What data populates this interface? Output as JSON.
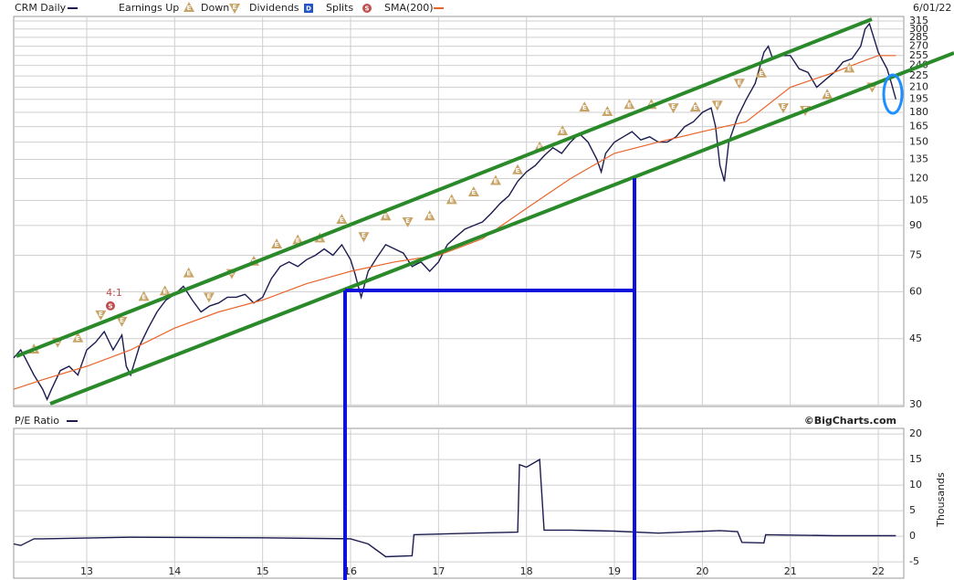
{
  "chart_data": [
    {
      "type": "line",
      "date": "6/01/22",
      "log_scale": true,
      "grid": true,
      "ylim": [
        29.7,
        324
      ],
      "xlim": [
        12.17,
        22.29
      ],
      "yticks": [
        30,
        45,
        60,
        75,
        90,
        105,
        120,
        135,
        150,
        165,
        180,
        195,
        210,
        225,
        240,
        255,
        270,
        285,
        300,
        315
      ],
      "xticks": [
        13,
        14,
        15,
        16,
        17,
        18,
        19,
        20,
        21,
        22
      ],
      "series": [
        {
          "name": "CRM Daily",
          "color": "#1c1c50",
          "x": [
            12.17,
            12.25,
            12.3,
            12.4,
            12.5,
            12.55,
            12.6,
            12.7,
            12.8,
            12.9,
            13.0,
            13.1,
            13.2,
            13.3,
            13.4,
            13.45,
            13.5,
            13.6,
            13.7,
            13.8,
            13.9,
            14.0,
            14.1,
            14.2,
            14.3,
            14.4,
            14.5,
            14.6,
            14.7,
            14.8,
            14.9,
            15.0,
            15.1,
            15.2,
            15.3,
            15.4,
            15.5,
            15.6,
            15.7,
            15.8,
            15.9,
            16.0,
            16.05,
            16.12,
            16.2,
            16.3,
            16.4,
            16.5,
            16.6,
            16.7,
            16.8,
            16.9,
            17.0,
            17.1,
            17.2,
            17.3,
            17.4,
            17.5,
            17.6,
            17.7,
            17.8,
            17.9,
            18.0,
            18.1,
            18.2,
            18.3,
            18.4,
            18.5,
            18.6,
            18.7,
            18.8,
            18.85,
            18.9,
            19.0,
            19.1,
            19.2,
            19.3,
            19.4,
            19.5,
            19.6,
            19.7,
            19.8,
            19.9,
            20.0,
            20.1,
            20.15,
            20.2,
            20.25,
            20.3,
            20.4,
            20.5,
            20.6,
            20.7,
            20.75,
            20.8,
            20.9,
            21.0,
            21.1,
            21.2,
            21.3,
            21.4,
            21.5,
            21.6,
            21.7,
            21.8,
            21.85,
            21.9,
            22.0,
            22.1,
            22.15,
            22.2
          ],
          "values": [
            40,
            42,
            40,
            36,
            33,
            31,
            33,
            37,
            38,
            36,
            42,
            44,
            47,
            42,
            46,
            38,
            36,
            43,
            48,
            53,
            57,
            59,
            62,
            57,
            53,
            55,
            56,
            58,
            58,
            59,
            56,
            58,
            65,
            70,
            72,
            70,
            73,
            75,
            78,
            75,
            80,
            73,
            67,
            58,
            68,
            74,
            80,
            78,
            76,
            70,
            72,
            68,
            72,
            80,
            84,
            88,
            90,
            92,
            97,
            103,
            108,
            118,
            125,
            130,
            138,
            145,
            140,
            150,
            158,
            150,
            135,
            125,
            140,
            150,
            155,
            160,
            152,
            155,
            150,
            150,
            155,
            165,
            170,
            180,
            185,
            165,
            130,
            118,
            150,
            175,
            195,
            215,
            260,
            270,
            250,
            255,
            255,
            235,
            230,
            210,
            220,
            230,
            245,
            250,
            270,
            300,
            310,
            260,
            235,
            215,
            195
          ]
        },
        {
          "name": "SMA(200)",
          "color": "#e8652a",
          "x": [
            12.17,
            12.5,
            13.0,
            13.5,
            14.0,
            14.5,
            15.0,
            15.5,
            16.0,
            16.5,
            17.0,
            17.5,
            18.0,
            18.5,
            19.0,
            19.5,
            20.0,
            20.5,
            21.0,
            21.5,
            21.8,
            22.0,
            22.2
          ],
          "values": [
            33,
            35,
            38,
            42,
            48,
            53,
            57,
            63,
            68,
            72,
            75,
            83,
            100,
            120,
            140,
            150,
            160,
            170,
            210,
            230,
            245,
            255,
            255
          ]
        }
      ],
      "markers": [
        {
          "name": "Earnings Up",
          "label": "E",
          "shape": "up",
          "color": "#c9a468",
          "x": [
            12.4,
            12.9,
            13.65,
            13.89,
            14.16,
            14.9,
            15.16,
            15.4,
            15.65,
            15.9,
            16.4,
            16.9,
            17.15,
            17.4,
            17.65,
            17.9,
            18.15,
            18.41,
            18.66,
            18.92,
            19.17,
            19.42,
            19.92,
            20.67,
            21.42,
            21.67
          ],
          "values": [
            42,
            45,
            58,
            60,
            67,
            72,
            80,
            82,
            83,
            93,
            95,
            95,
            105,
            110,
            118,
            126,
            145,
            160,
            185,
            180,
            188,
            188,
            185,
            228,
            200,
            235
          ]
        },
        {
          "name": "Down",
          "label": "E",
          "shape": "down",
          "color": "#c9a468",
          "x": [
            12.67,
            13.16,
            13.4,
            14.39,
            14.65,
            16.15,
            16.65,
            19.67,
            20.17,
            20.42,
            20.92,
            21.17,
            21.93
          ],
          "values": [
            44,
            52,
            50,
            58,
            67,
            84,
            92,
            185,
            188,
            215,
            185,
            182,
            210
          ]
        },
        {
          "name": "Dividends",
          "label": "D",
          "shape": "square",
          "color": "#2255cc",
          "x": [],
          "values": []
        },
        {
          "name": "Splits",
          "label": "S",
          "shape": "circle",
          "color": "#c0504d",
          "x": [
            13.27
          ],
          "values": [
            55
          ],
          "notes": [
            "4:1"
          ]
        }
      ]
    },
    {
      "type": "line",
      "title": "P/E Ratio",
      "credit": "©BigCharts.com",
      "ylabel": "Thousands",
      "grid": true,
      "ylim": [
        -8.2,
        21.1
      ],
      "xlim": [
        12.17,
        22.29
      ],
      "yticks": [
        -5,
        0,
        5,
        10,
        15,
        20
      ],
      "xticks": [
        13,
        14,
        15,
        16,
        17,
        18,
        19,
        20,
        21,
        22
      ],
      "series": [
        {
          "name": "P/E Ratio",
          "color": "#1c1c50",
          "x": [
            12.17,
            12.25,
            12.4,
            12.5,
            13.5,
            15.0,
            16.0,
            16.2,
            16.4,
            16.7,
            16.72,
            17.4,
            17.9,
            17.92,
            18.0,
            18.15,
            18.2,
            18.5,
            19.0,
            19.5,
            20.2,
            20.4,
            20.45,
            20.7,
            20.72,
            21.5,
            22.2
          ],
          "values": [
            -1.5,
            -1.8,
            -0.5,
            -0.5,
            -0.2,
            -0.3,
            -0.5,
            -1.5,
            -4,
            -3.8,
            0.3,
            0.6,
            0.8,
            14,
            13.5,
            15,
            1.2,
            1.2,
            1.0,
            0.6,
            1.1,
            0.9,
            -1.2,
            -1.3,
            0.3,
            0.1,
            0.1
          ]
        }
      ]
    }
  ]
}
